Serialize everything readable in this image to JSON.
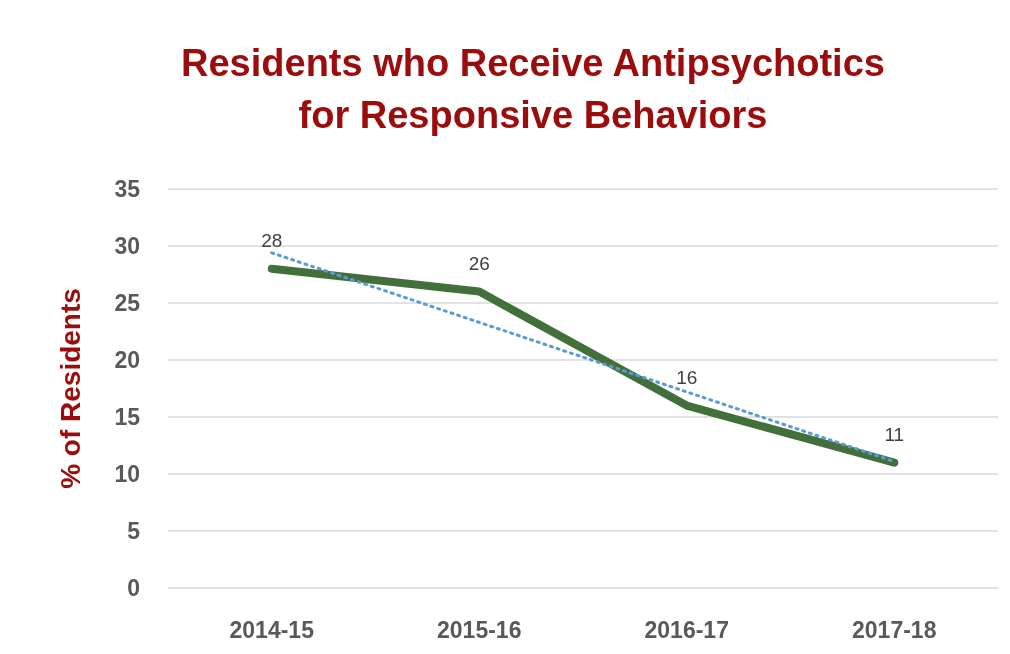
{
  "chart_data": {
    "type": "line",
    "title": "Residents who Receive Antipsychotics for Responsive Behaviors",
    "ylabel": "% of Residents",
    "categories": [
      "2014-15",
      "2015-16",
      "2016-17",
      "2017-18"
    ],
    "series": [
      {
        "color": "#41703a",
        "values": [
          28,
          26,
          16,
          11
        ],
        "value_labels": [
          "28",
          "26",
          "16",
          "11"
        ],
        "line_style": "solid"
      },
      {
        "type": "line",
        "color": "#5b9bd5",
        "x": [
          "2014-15",
          "2015-16",
          "2016-17",
          "2017-18"
        ],
        "values": [
          29.4,
          23.3,
          17.2,
          11.1
        ],
        "line_style": "dotted"
      }
    ],
    "ylim": [
      0,
      35
    ],
    "yticks": [
      0,
      5,
      10,
      15,
      20,
      25,
      30,
      35
    ],
    "grid": "y",
    "marker": "none"
  }
}
